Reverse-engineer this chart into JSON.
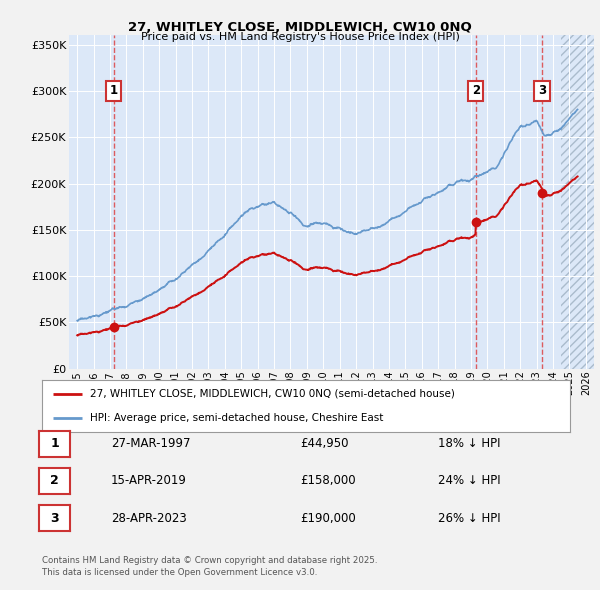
{
  "title_line1": "27, WHITLEY CLOSE, MIDDLEWICH, CW10 0NQ",
  "title_line2": "Price paid vs. HM Land Registry's House Price Index (HPI)",
  "ylim": [
    0,
    360000
  ],
  "yticks": [
    0,
    50000,
    100000,
    150000,
    200000,
    250000,
    300000,
    350000
  ],
  "ytick_labels": [
    "£0",
    "£50K",
    "£100K",
    "£150K",
    "£200K",
    "£250K",
    "£300K",
    "£350K"
  ],
  "plot_bg_color": "#dce8f8",
  "hpi_color": "#6699cc",
  "price_color": "#cc1111",
  "sale_marker_color": "#cc1111",
  "legend_house": "27, WHITLEY CLOSE, MIDDLEWICH, CW10 0NQ (semi-detached house)",
  "legend_hpi": "HPI: Average price, semi-detached house, Cheshire East",
  "sales": [
    {
      "label": "1",
      "date_str": "27-MAR-1997",
      "price": 44950,
      "pct": "18%",
      "x_year": 1997.23
    },
    {
      "label": "2",
      "date_str": "15-APR-2019",
      "price": 158000,
      "pct": "24%",
      "x_year": 2019.29
    },
    {
      "label": "3",
      "date_str": "28-APR-2023",
      "price": 190000,
      "pct": "26%",
      "x_year": 2023.33
    }
  ],
  "footer": "Contains HM Land Registry data © Crown copyright and database right 2025.\nThis data is licensed under the Open Government Licence v3.0.",
  "xlim": [
    1994.5,
    2026.5
  ],
  "hatch_start": 2024.5,
  "xtick_years": [
    1995,
    1996,
    1997,
    1998,
    1999,
    2000,
    2001,
    2002,
    2003,
    2004,
    2005,
    2006,
    2007,
    2008,
    2009,
    2010,
    2011,
    2012,
    2013,
    2014,
    2015,
    2016,
    2017,
    2018,
    2019,
    2020,
    2021,
    2022,
    2023,
    2024,
    2025,
    2026
  ]
}
